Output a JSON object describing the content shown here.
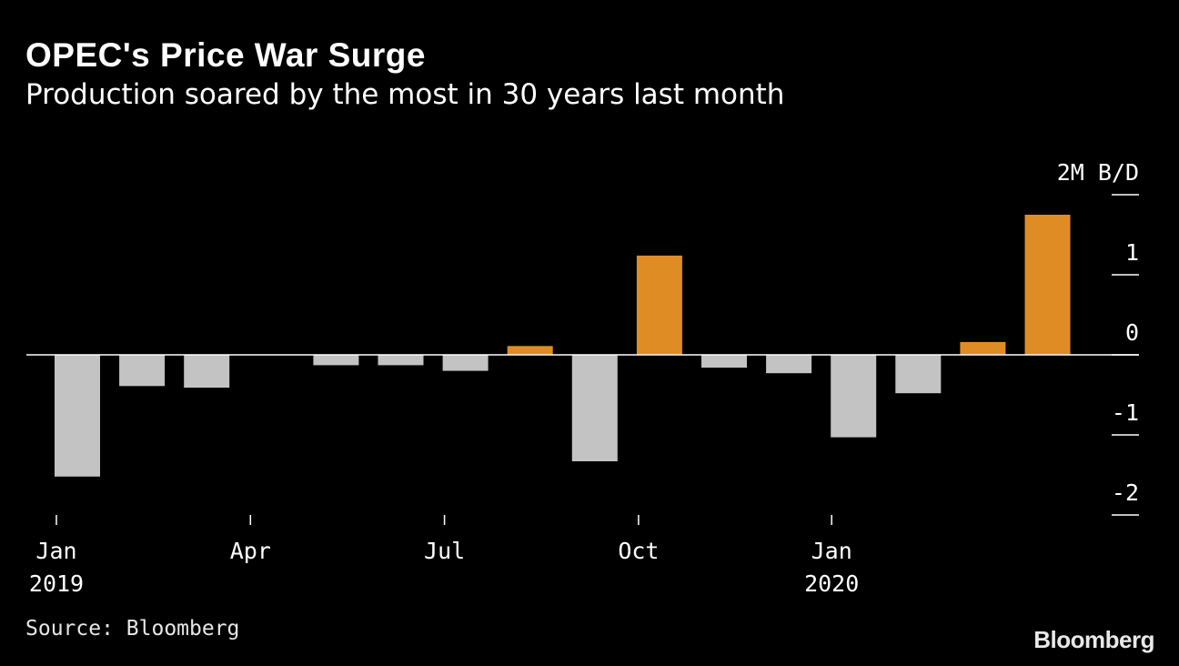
{
  "header": {
    "title": "OPEC's Price War Surge",
    "subtitle": "Production soared by the most in 30 years last month"
  },
  "footer": {
    "source": "Source: Bloomberg",
    "logo": "Bloomberg"
  },
  "colors": {
    "background": "#000000",
    "positive": "#e08c25",
    "negative": "#c3c3c3",
    "text": "#ffffff"
  },
  "chart_data": {
    "type": "bar",
    "title": "OPEC's Price War Surge",
    "subtitle": "Production soared by the most in 30 years last month",
    "unit_label": "2M B/D",
    "categories": [
      "Jan 2019",
      "Feb 2019",
      "Mar 2019",
      "Apr 2019",
      "May 2019",
      "Jun 2019",
      "Jul 2019",
      "Aug 2019",
      "Sep 2019",
      "Oct 2019",
      "Nov 2019",
      "Dec 2019",
      "Jan 2020",
      "Feb 2020",
      "Mar 2020",
      "Apr 2020",
      "May 2020"
    ],
    "values": [
      -1.52,
      -0.39,
      -0.41,
      0.0,
      -0.13,
      -0.13,
      -0.2,
      0.11,
      -1.33,
      1.24,
      -0.16,
      -0.23,
      -1.03,
      -0.48,
      0.16,
      1.75,
      0.0
    ],
    "x_tick_labels": [
      {
        "month": "Jan",
        "year": "2019"
      },
      {
        "month": "Apr",
        "year": ""
      },
      {
        "month": "Jul",
        "year": ""
      },
      {
        "month": "Oct",
        "year": ""
      },
      {
        "month": "Jan",
        "year": "2020"
      }
    ],
    "y_ticks": [
      {
        "value": 2,
        "label": "2M B/D"
      },
      {
        "value": 1,
        "label": "1"
      },
      {
        "value": 0,
        "label": "0"
      },
      {
        "value": -1,
        "label": "-1"
      },
      {
        "value": -2,
        "label": "-2"
      }
    ],
    "ylim": [
      -2,
      2
    ],
    "axis_position": "right",
    "grid": false,
    "legend": "none"
  }
}
